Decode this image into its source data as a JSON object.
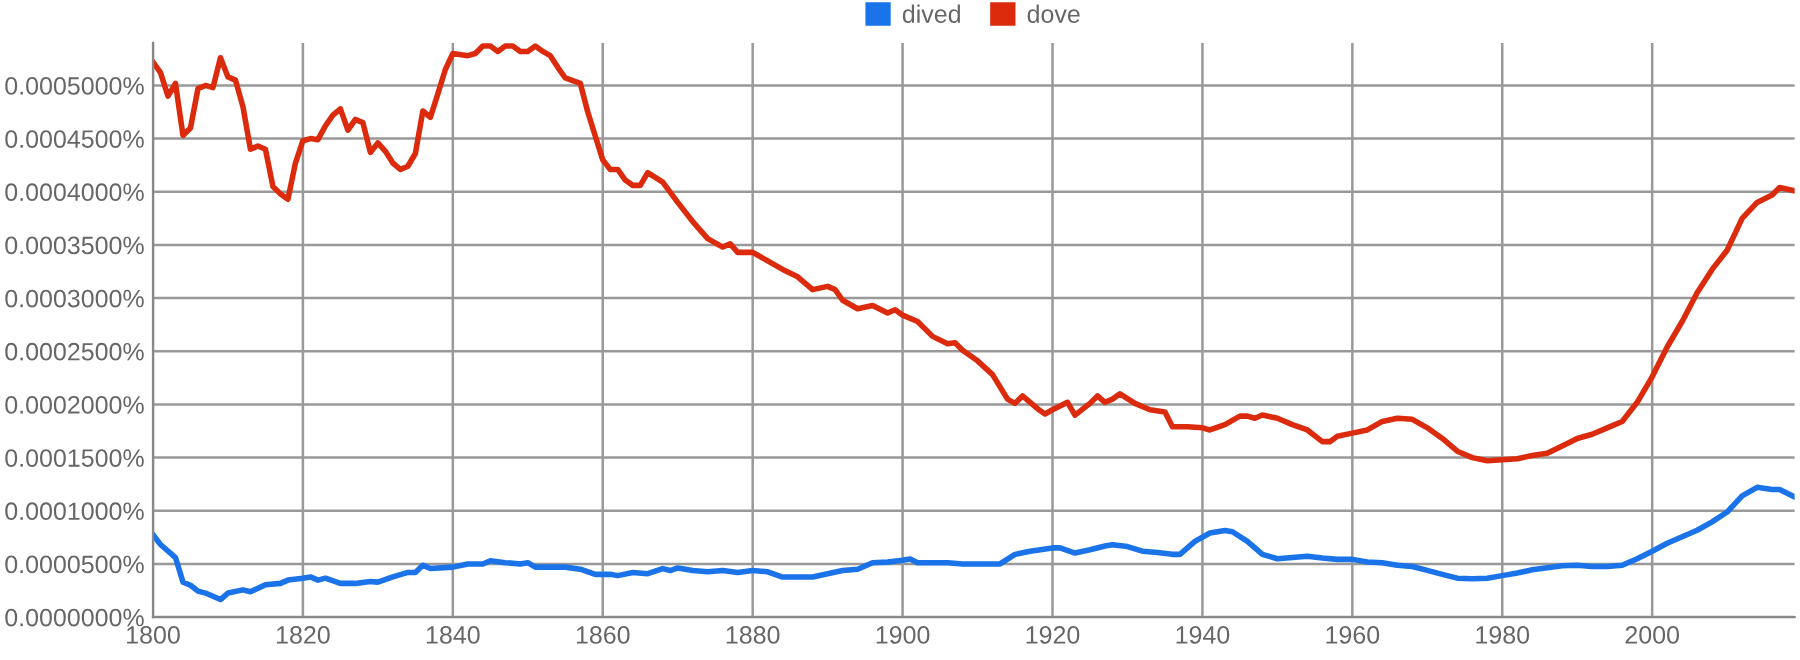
{
  "chart_data": {
    "type": "line",
    "xlim": [
      1800,
      2019
    ],
    "ylim": [
      0,
      0.00054
    ],
    "xticks": [
      1800,
      1820,
      1840,
      1860,
      1880,
      1900,
      1920,
      1940,
      1960,
      1980,
      2000
    ],
    "yticks": [
      {
        "value": 0,
        "label": "0.0000000%"
      },
      {
        "value": 5e-05,
        "label": "0.0000500%"
      },
      {
        "value": 0.0001,
        "label": "0.0001000%"
      },
      {
        "value": 0.00015,
        "label": "0.0001500%"
      },
      {
        "value": 0.0002,
        "label": "0.0002000%"
      },
      {
        "value": 0.00025,
        "label": "0.0002500%"
      },
      {
        "value": 0.0003,
        "label": "0.0003000%"
      },
      {
        "value": 0.00035,
        "label": "0.0003500%"
      },
      {
        "value": 0.0004,
        "label": "0.0004000%"
      },
      {
        "value": 0.00045,
        "label": "0.0004500%"
      },
      {
        "value": 0.0005,
        "label": "0.0005000%"
      }
    ],
    "grid": true,
    "legend": "top",
    "marker": "none",
    "line_style": "solid",
    "series": [
      {
        "name": "dived",
        "color": "#1a73e8",
        "x": [
          1800,
          1801,
          1803,
          1804,
          1805,
          1806,
          1807,
          1809,
          1810,
          1812,
          1813,
          1815,
          1817,
          1818,
          1820,
          1821,
          1822,
          1823,
          1825,
          1827,
          1829,
          1830,
          1832,
          1834,
          1835,
          1836,
          1837,
          1840,
          1842,
          1844,
          1845,
          1847,
          1849,
          1850,
          1851,
          1855,
          1857,
          1859,
          1861,
          1862,
          1864,
          1866,
          1868,
          1869,
          1870,
          1872,
          1874,
          1876,
          1878,
          1880,
          1882,
          1884,
          1886,
          1888,
          1890,
          1892,
          1894,
          1896,
          1898,
          1900,
          1901,
          1902,
          1906,
          1908,
          1910,
          1913,
          1915,
          1917,
          1920,
          1921,
          1923,
          1925,
          1927,
          1928,
          1930,
          1932,
          1934,
          1936,
          1937,
          1939,
          1941,
          1943,
          1944,
          1946,
          1948,
          1950,
          1952,
          1954,
          1956,
          1958,
          1960,
          1962,
          1964,
          1966,
          1968,
          1970,
          1972,
          1974,
          1976,
          1978,
          1980,
          1982,
          1984,
          1986,
          1988,
          1990,
          1992,
          1994,
          1996,
          1998,
          2000,
          2002,
          2004,
          2006,
          2008,
          2010,
          2012,
          2014,
          2016,
          2017,
          2019
        ],
        "values": [
          7.74e-05,
          6.83e-05,
          5.6e-05,
          3.29e-05,
          3e-05,
          2.44e-05,
          2.26e-05,
          1.65e-05,
          2.26e-05,
          2.56e-05,
          2.38e-05,
          3.05e-05,
          3.17e-05,
          3.48e-05,
          3.66e-05,
          3.78e-05,
          3.48e-05,
          3.66e-05,
          3.17e-05,
          3.17e-05,
          3.35e-05,
          3.29e-05,
          3.78e-05,
          4.2e-05,
          4.2e-05,
          4.88e-05,
          4.57e-05,
          4.7e-05,
          5e-05,
          5e-05,
          5.3e-05,
          5.12e-05,
          5e-05,
          5.12e-05,
          4.7e-05,
          4.7e-05,
          4.51e-05,
          4.02e-05,
          4.02e-05,
          3.9e-05,
          4.2e-05,
          4.08e-05,
          4.56e-05,
          4.38e-05,
          4.62e-05,
          4.38e-05,
          4.26e-05,
          4.38e-05,
          4.2e-05,
          4.38e-05,
          4.26e-05,
          3.77e-05,
          3.77e-05,
          3.77e-05,
          4.08e-05,
          4.38e-05,
          4.5e-05,
          5.11e-05,
          5.17e-05,
          5.35e-05,
          5.47e-05,
          5.11e-05,
          5.11e-05,
          5e-05,
          5e-05,
          5e-05,
          5.9e-05,
          6.2e-05,
          6.51e-05,
          6.51e-05,
          6.02e-05,
          6.33e-05,
          6.69e-05,
          6.81e-05,
          6.63e-05,
          6.2e-05,
          6.08e-05,
          5.9e-05,
          5.9e-05,
          7.12e-05,
          7.91e-05,
          8.15e-05,
          8.03e-05,
          7.12e-05,
          5.9e-05,
          5.49e-05,
          5.61e-05,
          5.73e-05,
          5.55e-05,
          5.43e-05,
          5.43e-05,
          5.18e-05,
          5.12e-05,
          4.88e-05,
          4.76e-05,
          4.39e-05,
          4.02e-05,
          3.66e-05,
          3.6e-05,
          3.66e-05,
          3.9e-05,
          4.15e-05,
          4.45e-05,
          4.63e-05,
          4.82e-05,
          4.88e-05,
          4.76e-05,
          4.76e-05,
          4.88e-05,
          5.49e-05,
          6.2e-05,
          6.95e-05,
          7.56e-05,
          8.17e-05,
          8.96e-05,
          9.88e-05,
          0.000114,
          0.000122,
          0.00012,
          0.00012,
          0.000113
        ]
      },
      {
        "name": "dove",
        "color": "#dc2a0c",
        "x": [
          1800,
          1801,
          1802,
          1803,
          1804,
          1805,
          1806,
          1807,
          1808,
          1809,
          1810,
          1811,
          1812,
          1813,
          1814,
          1815,
          1816,
          1817,
          1818,
          1819,
          1820,
          1821,
          1822,
          1823,
          1824,
          1825,
          1826,
          1827,
          1828,
          1829,
          1830,
          1831,
          1832,
          1833,
          1834,
          1835,
          1836,
          1837,
          1838,
          1839,
          1840,
          1842,
          1843,
          1844,
          1845,
          1846,
          1847,
          1848,
          1849,
          1850,
          1851,
          1852,
          1853,
          1854,
          1855,
          1857,
          1858,
          1860,
          1861,
          1862,
          1863,
          1864,
          1865,
          1866,
          1868,
          1870,
          1872,
          1874,
          1876,
          1877,
          1878,
          1880,
          1882,
          1884,
          1886,
          1888,
          1890,
          1891,
          1892,
          1894,
          1896,
          1898,
          1899,
          1900,
          1902,
          1904,
          1906,
          1907,
          1908,
          1910,
          1912,
          1914,
          1915,
          1916,
          1918,
          1919,
          1920,
          1922,
          1923,
          1925,
          1926,
          1927,
          1928,
          1929,
          1931,
          1933,
          1935,
          1936,
          1938,
          1940,
          1941,
          1943,
          1945,
          1946,
          1947,
          1948,
          1950,
          1952,
          1954,
          1956,
          1957,
          1958,
          1960,
          1962,
          1964,
          1966,
          1968,
          1970,
          1972,
          1974,
          1976,
          1978,
          1980,
          1982,
          1984,
          1986,
          1988,
          1990,
          1992,
          1994,
          1996,
          1998,
          2000,
          2002,
          2004,
          2006,
          2008,
          2010,
          2012,
          2014,
          2016,
          2017,
          2019
        ],
        "values": [
          0.000522,
          0.000512,
          0.00049,
          0.000502,
          0.000453,
          0.00046,
          0.000497,
          0.0005,
          0.000498,
          0.000526,
          0.000508,
          0.000505,
          0.00048,
          0.00044,
          0.000443,
          0.00044,
          0.000405,
          0.000398,
          0.000393,
          0.000427,
          0.000448,
          0.00045,
          0.000449,
          0.000462,
          0.000472,
          0.000478,
          0.000458,
          0.000468,
          0.000465,
          0.000437,
          0.000446,
          0.000438,
          0.000427,
          0.000421,
          0.000424,
          0.000436,
          0.000476,
          0.00047,
          0.000492,
          0.000515,
          0.00053,
          0.000528,
          0.00053,
          0.000537,
          0.000537,
          0.000532,
          0.000537,
          0.000537,
          0.000532,
          0.000532,
          0.000537,
          0.000532,
          0.000528,
          0.000517,
          0.000507,
          0.000502,
          0.000475,
          0.00043,
          0.000421,
          0.000421,
          0.000411,
          0.000406,
          0.000406,
          0.000418,
          0.000409,
          0.00039,
          0.000372,
          0.000356,
          0.000348,
          0.000351,
          0.000343,
          0.000343,
          0.000335,
          0.000327,
          0.00032,
          0.000308,
          0.000311,
          0.000308,
          0.000298,
          0.00029,
          0.000293,
          0.000286,
          0.000289,
          0.000284,
          0.000278,
          0.000264,
          0.000257,
          0.000258,
          0.000251,
          0.000241,
          0.000228,
          0.000205,
          0.000201,
          0.000208,
          0.000196,
          0.000191,
          0.000195,
          0.000202,
          0.00019,
          0.000201,
          0.000208,
          0.000202,
          0.000205,
          0.00021,
          0.000201,
          0.000195,
          0.000193,
          0.000179,
          0.000179,
          0.000178,
          0.000176,
          0.000181,
          0.000189,
          0.000189,
          0.000187,
          0.00019,
          0.000187,
          0.000181,
          0.000176,
          0.000165,
          0.000165,
          0.00017,
          0.000173,
          0.000176,
          0.000184,
          0.000187,
          0.000186,
          0.000178,
          0.000168,
          0.000156,
          0.00015,
          0.000147,
          0.000148,
          0.000149,
          0.000152,
          0.000154,
          0.000161,
          0.000168,
          0.000172,
          0.000178,
          0.000184,
          0.000202,
          0.000226,
          0.000254,
          0.000278,
          0.000305,
          0.000327,
          0.000345,
          0.000375,
          0.00039,
          0.000397,
          0.000404,
          0.000401
        ]
      }
    ]
  }
}
